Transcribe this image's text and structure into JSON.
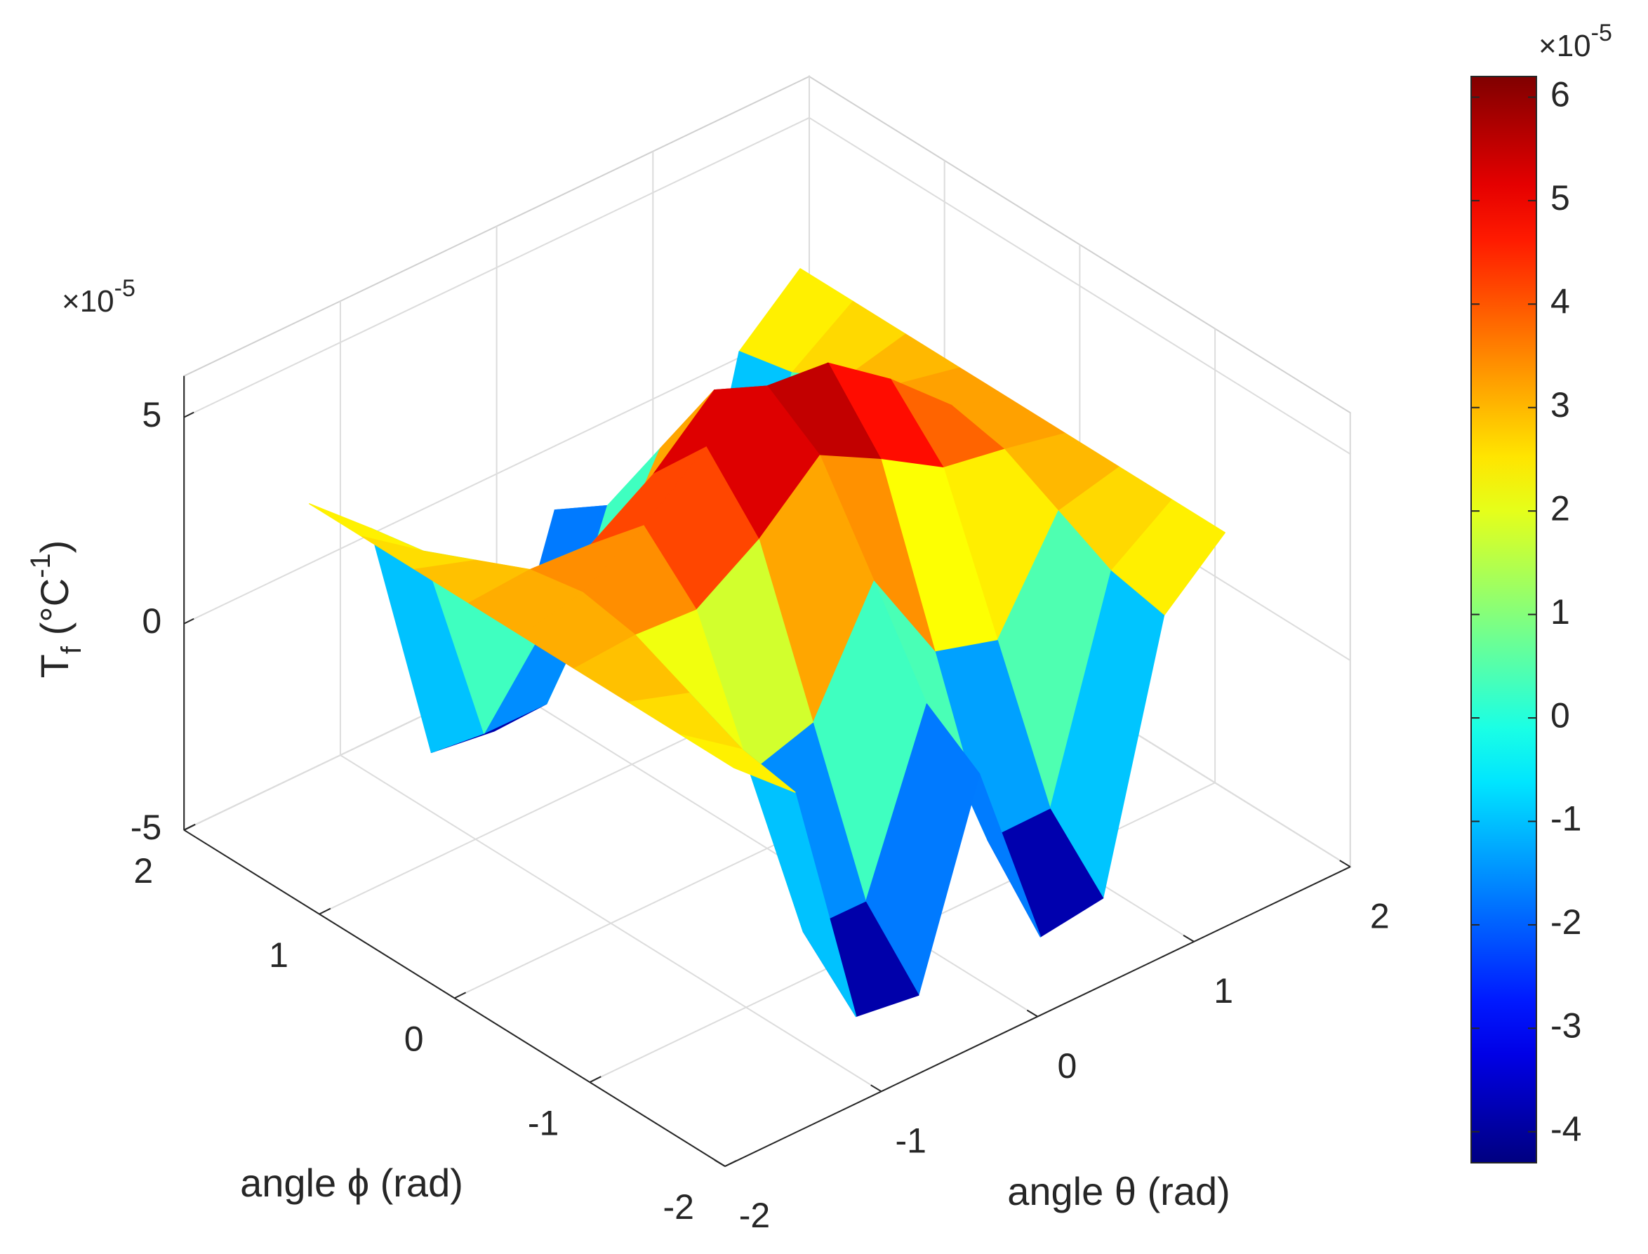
{
  "chart_data": {
    "type": "surface",
    "x_label": "angle θ (rad)",
    "y_label": "angle ϕ (rad)",
    "z_label": [
      {
        "text": "T"
      },
      {
        "text": "f",
        "shift": "sub"
      },
      {
        "text": " (°C"
      },
      {
        "text": "-1",
        "shift": "super"
      },
      {
        "text": ")"
      }
    ],
    "z_exponent": {
      "base": "×10",
      "power": "-5"
    },
    "colorbar_exponent": {
      "base": "×10",
      "power": "-5"
    },
    "x": [
      -1.57,
      -1.18,
      -0.79,
      -0.39,
      0,
      0.39,
      0.79,
      1.18,
      1.57
    ],
    "y": [
      -1.57,
      -1.18,
      -0.79,
      -0.39,
      0,
      0.39,
      0.79,
      1.18,
      1.57
    ],
    "z": [
      [
        3,
        1.7,
        -4.44,
        -4.65,
        0,
        -4.65,
        -4.44,
        1.7,
        3
      ],
      [
        3,
        1.94,
        -3.18,
        -3.19,
        0.9,
        -3.1,
        -3.08,
        1.98,
        3
      ],
      [
        3,
        2.51,
        -0.13,
        0.35,
        3.08,
        0.66,
        0.21,
        2.64,
        3
      ],
      [
        3,
        3.1,
        3.0,
        3.98,
        5.31,
        4.51,
        3.58,
        3.32,
        3
      ],
      [
        3,
        3.34,
        4.25,
        5.43,
        6.2,
        6.05,
        4.93,
        3.59,
        3
      ],
      [
        3,
        3.1,
        3.0,
        3.98,
        5.31,
        4.51,
        3.58,
        3.32,
        3
      ],
      [
        3,
        2.51,
        -0.13,
        0.35,
        3.08,
        0.66,
        0.21,
        2.64,
        3
      ],
      [
        3,
        1.94,
        -3.18,
        -3.19,
        0.9,
        -3.1,
        -3.08,
        1.98,
        3
      ],
      [
        3,
        1.7,
        -4.44,
        -4.65,
        0,
        -4.65,
        -4.44,
        1.7,
        3
      ]
    ],
    "xlim": [
      -2,
      2
    ],
    "ylim": [
      -2,
      2
    ],
    "zlim": [
      -5,
      6
    ],
    "xticks": [
      -2,
      -1,
      0,
      1,
      2
    ],
    "yticks": [
      -2,
      -1,
      0,
      1,
      2
    ],
    "zticks": [
      -5,
      0,
      5
    ],
    "clim": [
      -4.3,
      6.2
    ],
    "cticks": [
      -4,
      -3,
      -2,
      -1,
      0,
      1,
      2,
      3,
      4,
      5,
      6
    ],
    "colormap": "jet",
    "grid": true
  }
}
